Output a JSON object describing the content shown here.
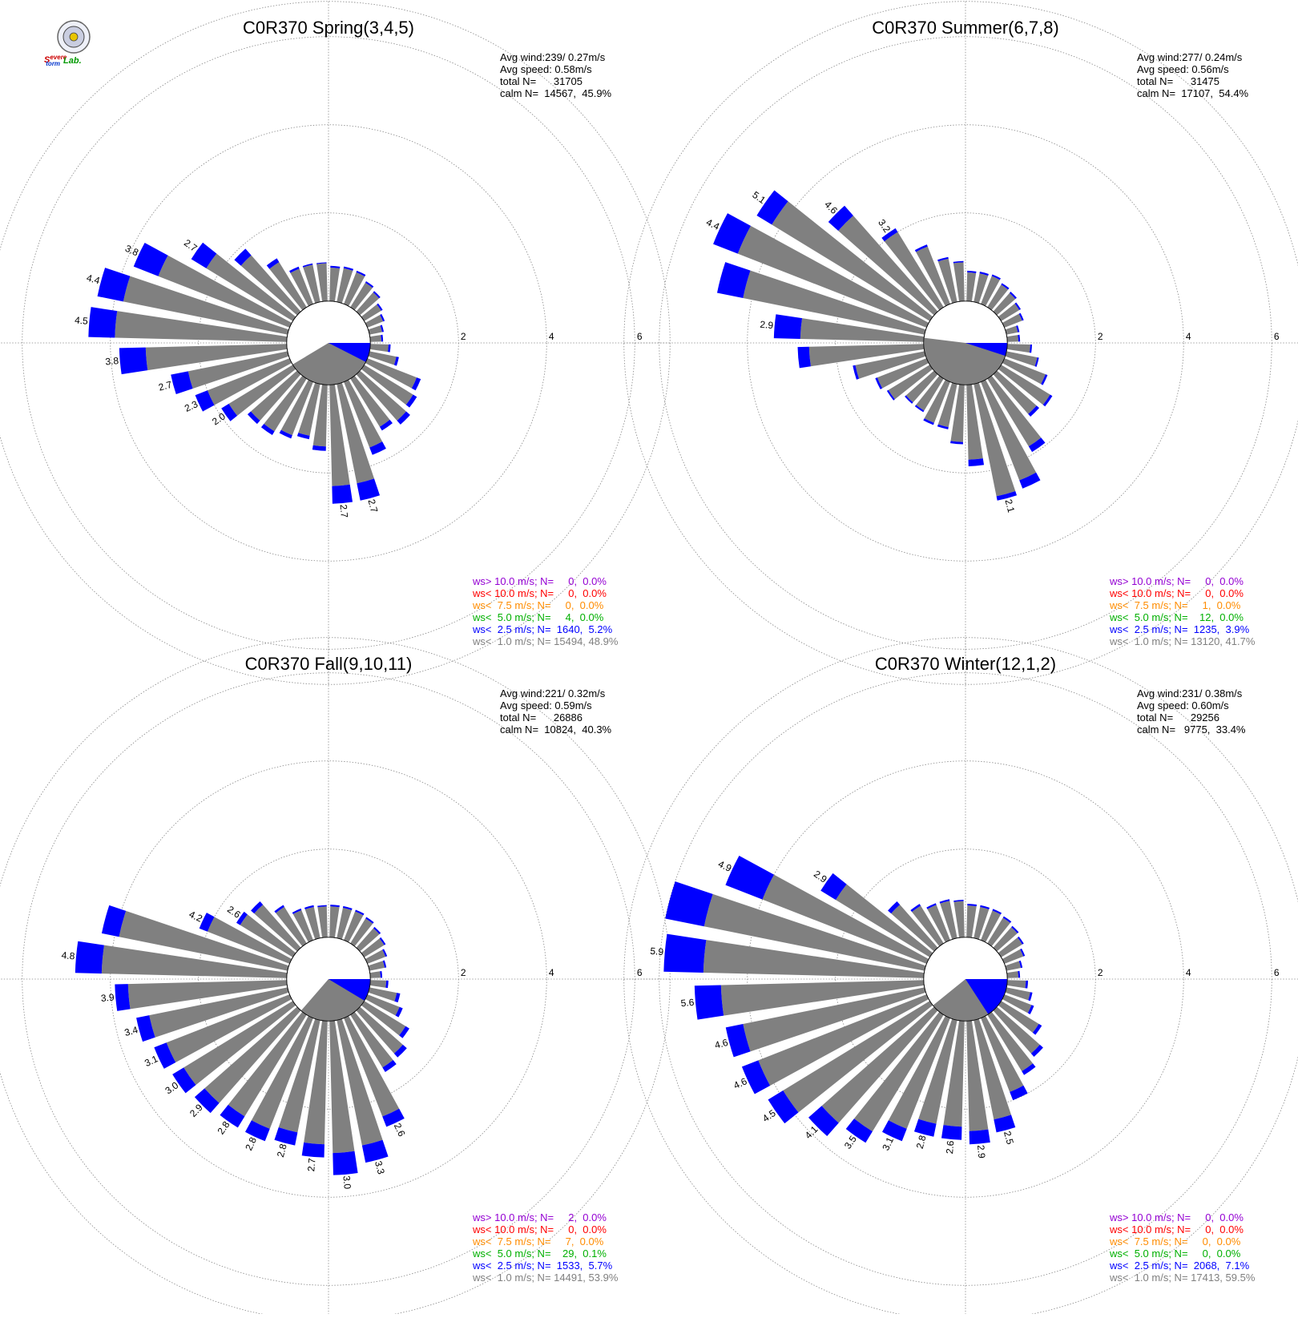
{
  "logo": {
    "name": "Severe Storm Lab.",
    "text": "Severe Storm Lab."
  },
  "colors": {
    "grid": "#888888",
    "calm_sector": "#808080",
    "speed_lt1": "#808080",
    "speed_lt2_5": "#0000ff",
    "speed_lt5": "#00b000",
    "speed_lt7_5": "#ff8c00",
    "speed_lt10": "#ff0000",
    "speed_gt10": "#9400d3"
  },
  "chart_data": [
    {
      "type": "wind_rose",
      "title": "C0R370 Spring(3,4,5)",
      "rlim": [
        0,
        6
      ],
      "ring_labels": [
        "2",
        "4",
        "6"
      ],
      "stats": [
        "Avg wind:239/ 0.27m/s",
        "Avg speed: 0.58m/s",
        "total N=      31705",
        "calm N=  14567,  45.9%"
      ],
      "legend": [
        "ws> 10.0 m/s; N=     0,  0.0%",
        "ws< 10.0 m/s; N=     0,  0.0%",
        "ws<  7.5 m/s; N=     0,  0.0%",
        "ws<  5.0 m/s; N=     4,  0.0%",
        "ws<  2.5 m/s; N=  1640,  5.2%",
        "ws<  1.0 m/s; N= 15494, 48.9%"
      ],
      "calm_sector_deg": [
        90,
        117
      ],
      "avg_wind_dir_deg": 239,
      "sector_width_deg": 10,
      "sector_start_deg": 5,
      "sector_step_deg": 10,
      "sectors": [
        [
          0.76,
          0.04
        ],
        [
          0.78,
          0.04
        ],
        [
          0.77,
          0.04
        ],
        [
          0.65,
          0.04
        ],
        [
          0.58,
          0.04
        ],
        [
          0.45,
          0.04
        ],
        [
          0.38,
          0.04
        ],
        [
          0.29,
          0.04
        ],
        [
          0.25,
          0.04
        ],
        [
          0.41,
          0.05
        ],
        [
          0.62,
          0.06
        ],
        [
          1.2,
          0.1
        ],
        [
          1.3,
          0.1
        ],
        [
          1.4,
          0.12
        ],
        [
          1.28,
          0.1
        ],
        [
          1.6,
          0.18
        ],
        [
          2.3,
          0.4
        ],
        [
          2.3,
          0.4
        ],
        [
          1.4,
          0.1
        ],
        [
          1.2,
          0.08
        ],
        [
          1.3,
          0.08
        ],
        [
          1.4,
          0.1
        ],
        [
          1.4,
          0.1
        ],
        [
          1.7,
          0.2
        ],
        [
          2.0,
          0.3
        ],
        [
          2.3,
          0.4
        ],
        [
          3.2,
          0.6
        ],
        [
          3.9,
          0.6
        ],
        [
          3.8,
          0.6
        ],
        [
          3.2,
          0.6
        ],
        [
          2.3,
          0.4
        ],
        [
          1.7,
          0.2
        ],
        [
          1.2,
          0.1
        ],
        [
          0.86,
          0.05
        ],
        [
          0.86,
          0.03
        ],
        [
          0.86,
          0.02
        ]
      ],
      "bar_labels": [
        {
          "dir": 275,
          "text": "4.5"
        },
        {
          "dir": 265,
          "text": "3.8"
        },
        {
          "dir": 255,
          "text": "2.7"
        },
        {
          "dir": 245,
          "text": "2.3"
        },
        {
          "dir": 235,
          "text": "2.0"
        },
        {
          "dir": 285,
          "text": "4.4"
        },
        {
          "dir": 295,
          "text": "3.8"
        },
        {
          "dir": 305,
          "text": "2.7"
        },
        {
          "dir": 165,
          "text": "2.7"
        },
        {
          "dir": 175,
          "text": "2.7"
        }
      ]
    },
    {
      "type": "wind_rose",
      "title": "C0R370 Summer(6,7,8)",
      "rlim": [
        0,
        6
      ],
      "ring_labels": [
        "2",
        "4",
        "6"
      ],
      "stats": [
        "Avg wind:277/ 0.24m/s",
        "Avg speed: 0.56m/s",
        "total N=      31475",
        "calm N=  17107,  54.4%"
      ],
      "legend": [
        "ws> 10.0 m/s; N=     0,  0.0%",
        "ws< 10.0 m/s; N=     0,  0.0%",
        "ws<  7.5 m/s; N=     1,  0.0%",
        "ws<  5.0 m/s; N=    12,  0.0%",
        "ws<  2.5 m/s; N=  1235,  3.9%",
        "ws<  1.0 m/s; N= 13120, 41.7%"
      ],
      "calm_sector_deg": [
        90,
        108
      ],
      "avg_wind_dir_deg": 277,
      "sector_width_deg": 10,
      "sector_start_deg": 5,
      "sector_step_deg": 10,
      "sectors": [
        [
          0.65,
          0.04
        ],
        [
          0.66,
          0.04
        ],
        [
          0.68,
          0.04
        ],
        [
          0.6,
          0.04
        ],
        [
          0.56,
          0.04
        ],
        [
          0.48,
          0.04
        ],
        [
          0.43,
          0.04
        ],
        [
          0.26,
          0.04
        ],
        [
          0.25,
          0.04
        ],
        [
          0.52,
          0.04
        ],
        [
          0.71,
          0.04
        ],
        [
          1.0,
          0.05
        ],
        [
          1.3,
          0.06
        ],
        [
          1.2,
          0.08
        ],
        [
          1.8,
          0.15
        ],
        [
          2.4,
          0.2
        ],
        [
          2.6,
          0.1
        ],
        [
          1.7,
          0.15
        ],
        [
          1.3,
          0.05
        ],
        [
          1.0,
          0.05
        ],
        [
          1.0,
          0.05
        ],
        [
          0.85,
          0.04
        ],
        [
          0.85,
          0.04
        ],
        [
          1.1,
          0.04
        ],
        [
          1.2,
          0.05
        ],
        [
          1.6,
          0.06
        ],
        [
          2.6,
          0.26
        ],
        [
          2.8,
          0.6
        ],
        [
          4.2,
          0.6
        ],
        [
          4.6,
          0.6
        ],
        [
          4.2,
          0.4
        ],
        [
          2.9,
          0.3
        ],
        [
          2.0,
          0.1
        ],
        [
          1.4,
          0.05
        ],
        [
          1.0,
          0.04
        ],
        [
          0.88,
          0.03
        ]
      ],
      "bar_labels": [
        {
          "dir": 275,
          "text": "2.9"
        },
        {
          "dir": 295,
          "text": "4.4"
        },
        {
          "dir": 305,
          "text": "5.1"
        },
        {
          "dir": 315,
          "text": "4.6"
        },
        {
          "dir": 325,
          "text": "3.2"
        },
        {
          "dir": 165,
          "text": "2.1"
        }
      ]
    },
    {
      "type": "wind_rose",
      "title": "C0R370 Fall(9,10,11)",
      "rlim": [
        0,
        6
      ],
      "ring_labels": [
        "2",
        "4",
        "6"
      ],
      "stats": [
        "Avg wind:221/ 0.32m/s",
        "Avg speed: 0.59m/s",
        "total N=      26886",
        "calm N=  10824,  40.3%"
      ],
      "legend": [
        "ws> 10.0 m/s; N=     2,  0.0%",
        "ws< 10.0 m/s; N=     0,  0.0%",
        "ws<  7.5 m/s; N=     7,  0.0%",
        "ws<  5.0 m/s; N=    29,  0.1%",
        "ws<  2.5 m/s; N=  1533,  5.7%",
        "ws<  1.0 m/s; N= 14491, 53.9%"
      ],
      "calm_sector_deg": [
        90,
        121
      ],
      "avg_wind_dir_deg": 221,
      "sector_width_deg": 10,
      "sector_start_deg": 5,
      "sector_step_deg": 10,
      "sectors": [
        [
          0.7,
          0.04
        ],
        [
          0.7,
          0.04
        ],
        [
          0.7,
          0.04
        ],
        [
          0.66,
          0.04
        ],
        [
          0.59,
          0.04
        ],
        [
          0.53,
          0.04
        ],
        [
          0.44,
          0.04
        ],
        [
          0.35,
          0.04
        ],
        [
          0.23,
          0.04
        ],
        [
          0.36,
          0.05
        ],
        [
          0.63,
          0.08
        ],
        [
          0.78,
          0.08
        ],
        [
          1.1,
          0.1
        ],
        [
          1.3,
          0.12
        ],
        [
          1.4,
          0.12
        ],
        [
          2.4,
          0.25
        ],
        [
          2.9,
          0.4
        ],
        [
          3.0,
          0.5
        ],
        [
          2.8,
          0.3
        ],
        [
          2.6,
          0.3
        ],
        [
          2.7,
          0.3
        ],
        [
          2.7,
          0.3
        ],
        [
          2.8,
          0.3
        ],
        [
          2.9,
          0.3
        ],
        [
          3.0,
          0.3
        ],
        [
          3.2,
          0.3
        ],
        [
          3.6,
          0.3
        ],
        [
          4.2,
          0.6
        ],
        [
          3.9,
          0.4
        ],
        [
          2.0,
          0.2
        ],
        [
          1.4,
          0.1
        ],
        [
          1.3,
          0.1
        ],
        [
          0.97,
          0.05
        ],
        [
          0.73,
          0.04
        ],
        [
          0.72,
          0.04
        ],
        [
          0.7,
          0.03
        ]
      ],
      "bar_labels": [
        {
          "dir": 275,
          "text": "4.8"
        },
        {
          "dir": 295,
          "text": "4.2"
        },
        {
          "dir": 305,
          "text": "2.6"
        },
        {
          "dir": 265,
          "text": "3.9"
        },
        {
          "dir": 255,
          "text": "3.4"
        },
        {
          "dir": 245,
          "text": "3.1"
        },
        {
          "dir": 235,
          "text": "3.0"
        },
        {
          "dir": 225,
          "text": "2.9"
        },
        {
          "dir": 215,
          "text": "2.8"
        },
        {
          "dir": 205,
          "text": "2.8"
        },
        {
          "dir": 195,
          "text": "2.8"
        },
        {
          "dir": 185,
          "text": "2.7"
        },
        {
          "dir": 175,
          "text": "3.0"
        },
        {
          "dir": 165,
          "text": "3.3"
        },
        {
          "dir": 155,
          "text": "2.6"
        }
      ]
    },
    {
      "type": "wind_rose",
      "title": "C0R370 Winter(12,1,2)",
      "rlim": [
        0,
        6
      ],
      "ring_labels": [
        "2",
        "4",
        "6"
      ],
      "stats": [
        "Avg wind:231/ 0.38m/s",
        "Avg speed: 0.60m/s",
        "total N=      29256",
        "calm N=   9775,  33.4%"
      ],
      "legend": [
        "ws> 10.0 m/s; N=     0,  0.0%",
        "ws< 10.0 m/s; N=     0,  0.0%",
        "ws<  7.5 m/s; N=     0,  0.0%",
        "ws<  5.0 m/s; N=     0,  0.0%",
        "ws<  2.5 m/s; N=  2068,  7.1%",
        "ws<  1.0 m/s; N= 17413, 59.5%"
      ],
      "calm_sector_deg": [
        90,
        147
      ],
      "avg_wind_dir_deg": 231,
      "sector_width_deg": 10,
      "sector_start_deg": 5,
      "sector_step_deg": 10,
      "sectors": [
        [
          0.72,
          0.04
        ],
        [
          0.72,
          0.04
        ],
        [
          0.72,
          0.04
        ],
        [
          0.68,
          0.04
        ],
        [
          0.62,
          0.04
        ],
        [
          0.56,
          0.04
        ],
        [
          0.46,
          0.04
        ],
        [
          0.33,
          0.04
        ],
        [
          0.25,
          0.04
        ],
        [
          0.42,
          0.05
        ],
        [
          0.55,
          0.05
        ],
        [
          0.66,
          0.06
        ],
        [
          1.0,
          0.08
        ],
        [
          1.3,
          0.1
        ],
        [
          1.5,
          0.1
        ],
        [
          1.8,
          0.2
        ],
        [
          2.3,
          0.3
        ],
        [
          2.5,
          0.3
        ],
        [
          2.4,
          0.3
        ],
        [
          2.4,
          0.3
        ],
        [
          2.7,
          0.3
        ],
        [
          3.1,
          0.3
        ],
        [
          3.4,
          0.4
        ],
        [
          3.9,
          0.4
        ],
        [
          4.1,
          0.4
        ],
        [
          4.2,
          0.4
        ],
        [
          4.6,
          0.6
        ],
        [
          5.0,
          0.9
        ],
        [
          5.1,
          0.9
        ],
        [
          4.0,
          0.9
        ],
        [
          2.5,
          0.4
        ],
        [
          1.3,
          0.1
        ],
        [
          1.0,
          0.05
        ],
        [
          0.86,
          0.04
        ],
        [
          0.86,
          0.04
        ],
        [
          0.82,
          0.03
        ]
      ],
      "bar_labels": [
        {
          "dir": 275,
          "text": "5.9"
        },
        {
          "dir": 265,
          "text": "5.6"
        },
        {
          "dir": 295,
          "text": "4.9"
        },
        {
          "dir": 305,
          "text": "2.9"
        },
        {
          "dir": 255,
          "text": "4.6"
        },
        {
          "dir": 245,
          "text": "4.6"
        },
        {
          "dir": 235,
          "text": "4.5"
        },
        {
          "dir": 225,
          "text": "4.1"
        },
        {
          "dir": 215,
          "text": "3.5"
        },
        {
          "dir": 205,
          "text": "3.1"
        },
        {
          "dir": 195,
          "text": "2.8"
        },
        {
          "dir": 185,
          "text": "2.6"
        },
        {
          "dir": 175,
          "text": "2.9"
        },
        {
          "dir": 165,
          "text": "2.5"
        }
      ]
    }
  ]
}
